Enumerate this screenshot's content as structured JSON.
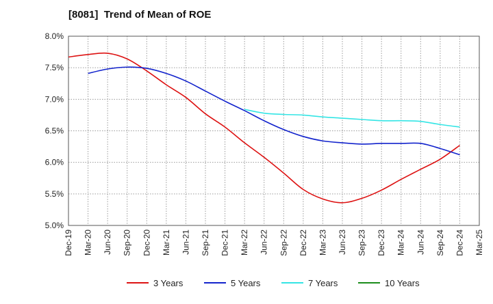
{
  "chart_data": {
    "type": "line",
    "title": "[8081]  Trend of Mean of ROE",
    "xlabel": "",
    "ylabel": "",
    "ylim": [
      5.0,
      8.0
    ],
    "yticks": [
      "5.0%",
      "5.5%",
      "6.0%",
      "6.5%",
      "7.0%",
      "7.5%",
      "8.0%"
    ],
    "x_ticks": [
      "Dec-19",
      "Mar-20",
      "Jun-20",
      "Sep-20",
      "Dec-20",
      "Mar-21",
      "Jun-21",
      "Sep-21",
      "Dec-21",
      "Mar-22",
      "Jun-22",
      "Sep-22",
      "Dec-22",
      "Mar-23",
      "Jun-23",
      "Sep-23",
      "Dec-23",
      "Mar-24",
      "Jun-24",
      "Sep-24",
      "Dec-24",
      "Mar-25"
    ],
    "grid": true,
    "legend_position": "bottom",
    "series": [
      {
        "name": "3 Years",
        "color": "#dd1111",
        "values": [
          7.67,
          7.71,
          7.73,
          7.64,
          7.45,
          7.23,
          7.03,
          6.77,
          6.56,
          6.31,
          6.08,
          5.83,
          5.57,
          5.42,
          5.36,
          5.43,
          5.56,
          5.73,
          5.89,
          6.05,
          6.27,
          null
        ]
      },
      {
        "name": "5 Years",
        "color": "#1122cc",
        "values": [
          null,
          7.41,
          7.48,
          7.51,
          7.49,
          7.41,
          7.29,
          7.13,
          6.97,
          6.82,
          6.66,
          6.52,
          6.41,
          6.34,
          6.31,
          6.29,
          6.3,
          6.3,
          6.3,
          6.22,
          6.12,
          null
        ]
      },
      {
        "name": "7 Years",
        "color": "#33e5e5",
        "values": [
          null,
          null,
          null,
          null,
          null,
          null,
          null,
          null,
          null,
          6.84,
          6.78,
          6.76,
          6.75,
          6.72,
          6.7,
          6.68,
          6.66,
          6.66,
          6.65,
          6.6,
          6.56,
          null
        ]
      },
      {
        "name": "10 Years",
        "color": "#1a8c1a",
        "values": [
          null,
          null,
          null,
          null,
          null,
          null,
          null,
          null,
          null,
          null,
          null,
          null,
          null,
          null,
          null,
          null,
          null,
          null,
          null,
          null,
          null,
          null
        ]
      }
    ]
  }
}
